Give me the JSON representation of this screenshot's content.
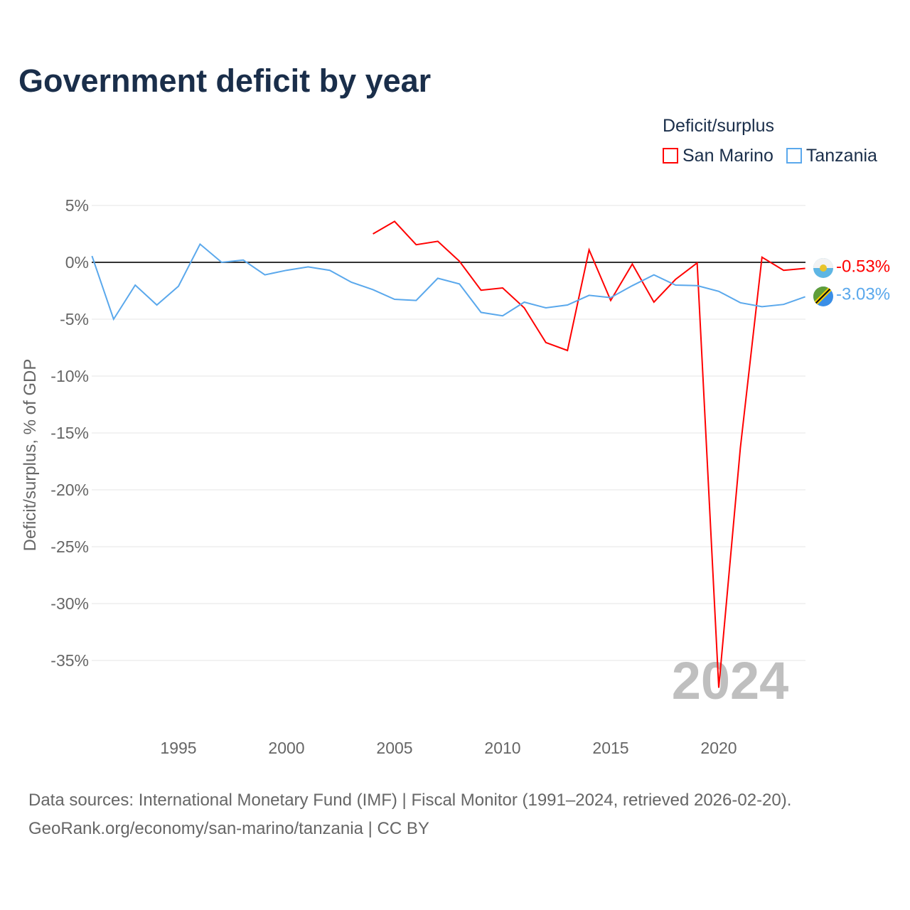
{
  "chart_data": {
    "type": "line",
    "title": "Government deficit by year",
    "ylabel": "Deficit/surplus, % of GDP",
    "xlabel": "",
    "legend_title": "Deficit/surplus",
    "legend_position": "top-right",
    "ylim": [
      -40,
      6
    ],
    "xlim": [
      1991,
      2024
    ],
    "yticks": [
      5,
      0,
      -5,
      -10,
      -15,
      -20,
      -25,
      -30,
      -35
    ],
    "ytick_labels": [
      "5%",
      "0%",
      "-5%",
      "-10%",
      "-15%",
      "-20%",
      "-25%",
      "-30%",
      "-35%"
    ],
    "xticks": [
      1995,
      2000,
      2005,
      2010,
      2015,
      2020
    ],
    "xtick_labels": [
      "1995",
      "2000",
      "2005",
      "2010",
      "2015",
      "2020"
    ],
    "watermark_year": "2024",
    "series": [
      {
        "name": "San Marino",
        "color": "#ff0000",
        "end_label": "-0.53%",
        "x": [
          2004,
          2005,
          2006,
          2007,
          2008,
          2009,
          2010,
          2011,
          2012,
          2013,
          2014,
          2015,
          2016,
          2017,
          2018,
          2019,
          2020,
          2021,
          2022,
          2023,
          2024
        ],
        "values": [
          2.5,
          3.6,
          1.55,
          1.85,
          0.1,
          -2.45,
          -2.25,
          -4.0,
          -7.05,
          -7.75,
          1.1,
          -3.35,
          -0.15,
          -3.5,
          -1.5,
          -0.05,
          -37.4,
          -16.3,
          0.45,
          -0.7,
          -0.53
        ]
      },
      {
        "name": "Tanzania",
        "color": "#5aa8ec",
        "end_label": "-3.03%",
        "x": [
          1991,
          1992,
          1993,
          1994,
          1995,
          1996,
          1997,
          1998,
          1999,
          2000,
          2001,
          2002,
          2003,
          2004,
          2005,
          2006,
          2007,
          2008,
          2009,
          2010,
          2011,
          2012,
          2013,
          2014,
          2015,
          2016,
          2017,
          2018,
          2019,
          2020,
          2021,
          2022,
          2023,
          2024
        ],
        "values": [
          0.56,
          -5.0,
          -2.0,
          -3.75,
          -2.1,
          1.6,
          0,
          0.2,
          -1.1,
          -0.7,
          -0.4,
          -0.7,
          -1.75,
          -2.4,
          -3.25,
          -3.35,
          -1.4,
          -1.9,
          -4.4,
          -4.7,
          -3.5,
          -4.0,
          -3.75,
          -2.9,
          -3.1,
          -2.05,
          -1.1,
          -2.0,
          -2.05,
          -2.55,
          -3.55,
          -3.9,
          -3.7,
          -3.03
        ]
      }
    ]
  },
  "source": {
    "line1": "Data sources: International Monetary Fund (IMF) | Fiscal Monitor (1991–2024, retrieved 2026-02-20).",
    "line2": "GeoRank.org/economy/san-marino/tanzania | CC BY"
  }
}
